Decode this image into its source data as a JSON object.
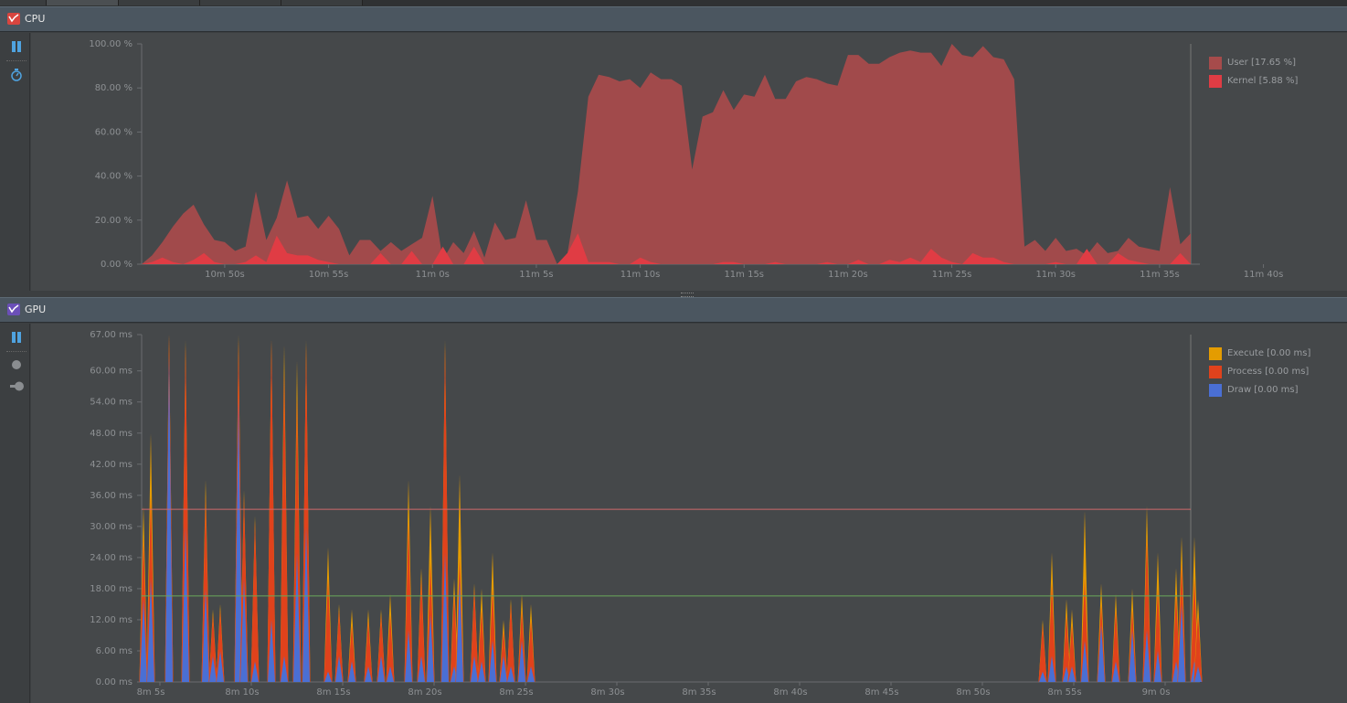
{
  "cpu": {
    "title": "CPU",
    "icon": "cpu-monitor-icon",
    "accent": "#e04545",
    "y_axis": [
      "100.00 %",
      "80.00 %",
      "60.00 %",
      "40.00 %",
      "20.00 %",
      "0.00 %"
    ],
    "x_axis": [
      "10m 50s",
      "10m 55s",
      "11m 0s",
      "11m 5s",
      "11m 10s",
      "11m 15s",
      "11m 20s",
      "11m 25s",
      "11m 30s",
      "11m 35s",
      "11m 40s"
    ],
    "legend": [
      {
        "label": "User [17.65 %]",
        "color": "#a64b4b"
      },
      {
        "label": "Kernel [5.88 %]",
        "color": "#e03c44"
      }
    ]
  },
  "gpu": {
    "title": "GPU",
    "icon": "gpu-monitor-icon",
    "accent": "#7d5cc4",
    "y_axis": [
      "67.00 ms",
      "60.00 ms",
      "54.00 ms",
      "48.00 ms",
      "42.00 ms",
      "36.00 ms",
      "30.00 ms",
      "24.00 ms",
      "18.00 ms",
      "12.00 ms",
      "6.00 ms",
      "0.00 ms"
    ],
    "x_axis": [
      "8m 5s",
      "8m 10s",
      "8m 15s",
      "8m 20s",
      "8m 25s",
      "8m 30s",
      "8m 35s",
      "8m 40s",
      "8m 45s",
      "8m 50s",
      "8m 55s",
      "9m 0s"
    ],
    "legend": [
      {
        "label": "Execute [0.00 ms]",
        "color": "#e49c00"
      },
      {
        "label": "Process [0.00 ms]",
        "color": "#e0421c"
      },
      {
        "label": "Draw [0.00 ms]",
        "color": "#4a6fd4"
      }
    ],
    "threshold_lines": [
      {
        "value_ms": 33.3,
        "color": "#d06a6a"
      },
      {
        "value_ms": 16.6,
        "color": "#6aa85a"
      }
    ]
  },
  "chart_data": [
    {
      "type": "area",
      "name": "CPU",
      "ylim": [
        0,
        100
      ],
      "y_unit": "%",
      "x_start_s": 646,
      "x_step_s": 0.5,
      "series": [
        {
          "name": "User",
          "values": [
            0,
            4,
            10,
            17,
            23,
            27,
            18,
            11,
            10,
            6,
            8,
            33,
            11,
            21,
            38,
            21,
            22,
            16,
            22,
            16,
            4,
            11,
            11,
            6,
            10,
            6,
            9,
            12,
            31,
            2,
            10,
            5,
            15,
            3,
            19,
            11,
            12,
            29,
            11,
            11,
            0,
            5,
            33,
            76,
            86,
            85,
            83,
            84,
            80,
            87,
            84,
            84,
            81,
            43,
            67,
            69,
            79,
            70,
            77,
            76,
            86,
            75,
            75,
            83,
            85,
            84,
            82,
            81,
            95,
            95,
            91,
            91,
            94,
            96,
            97,
            96,
            96,
            90,
            100,
            95,
            94,
            99,
            94,
            93,
            84,
            8,
            11,
            6,
            12,
            6,
            7,
            4,
            10,
            5,
            6,
            12,
            8,
            7,
            6,
            35,
            9,
            14
          ]
        },
        {
          "name": "Kernel",
          "values": [
            0,
            1,
            3,
            1,
            0,
            2,
            5,
            1,
            0,
            0,
            1,
            4,
            1,
            13,
            5,
            4,
            4,
            2,
            1,
            0,
            0,
            0,
            0,
            5,
            0,
            0,
            6,
            0,
            0,
            8,
            0,
            0,
            8,
            0,
            0,
            0,
            0,
            0,
            0,
            0,
            0,
            5,
            14,
            1,
            1,
            1,
            0,
            0,
            3,
            1,
            0,
            0,
            0,
            0,
            0,
            0,
            1,
            1,
            0,
            0,
            0,
            1,
            0,
            0,
            0,
            0,
            1,
            0,
            0,
            2,
            0,
            0,
            2,
            1,
            3,
            1,
            7,
            3,
            1,
            0,
            5,
            3,
            3,
            1,
            0,
            0,
            0,
            0,
            1,
            0,
            0,
            7,
            0,
            0,
            5,
            2,
            1,
            0,
            0,
            0,
            5,
            0,
            0
          ]
        }
      ]
    },
    {
      "type": "area",
      "name": "GPU",
      "ylim": [
        0,
        67
      ],
      "y_unit": "ms",
      "x_start_s": 484,
      "series": [
        {
          "name": "Execute",
          "values": []
        },
        {
          "name": "Process",
          "values": []
        },
        {
          "name": "Draw",
          "values": []
        }
      ],
      "spikes": [
        {
          "t": 484.1,
          "draw": 16,
          "process": 12,
          "execute": 6
        },
        {
          "t": 484.5,
          "draw": 20,
          "process": 16,
          "execute": 12
        },
        {
          "t": 485.5,
          "draw": 63,
          "process": 4,
          "execute": 0
        },
        {
          "t": 486.4,
          "draw": 30,
          "process": 35,
          "execute": 1
        },
        {
          "t": 487.5,
          "draw": 18,
          "process": 18,
          "execute": 3
        },
        {
          "t": 487.9,
          "draw": 5,
          "process": 8,
          "execute": 1
        },
        {
          "t": 488.3,
          "draw": 6,
          "process": 8,
          "execute": 1
        },
        {
          "t": 489.3,
          "draw": 55,
          "process": 11,
          "execute": 1
        },
        {
          "t": 489.6,
          "draw": 20,
          "process": 16,
          "execute": 1
        },
        {
          "t": 490.2,
          "draw": 4,
          "process": 27,
          "execute": 1
        },
        {
          "t": 491.1,
          "draw": 12,
          "process": 54,
          "execute": 0
        },
        {
          "t": 491.8,
          "draw": 5,
          "process": 55,
          "execute": 5
        },
        {
          "t": 492.5,
          "draw": 25,
          "process": 30,
          "execute": 7
        },
        {
          "t": 493.0,
          "draw": 30,
          "process": 35,
          "execute": 1
        },
        {
          "t": 494.2,
          "draw": 2,
          "process": 18,
          "execute": 6
        },
        {
          "t": 494.8,
          "draw": 5,
          "process": 9,
          "execute": 1
        },
        {
          "t": 495.5,
          "draw": 4,
          "process": 7,
          "execute": 3
        },
        {
          "t": 496.4,
          "draw": 3,
          "process": 9,
          "execute": 2
        },
        {
          "t": 497.1,
          "draw": 5,
          "process": 8,
          "execute": 1
        },
        {
          "t": 497.6,
          "draw": 3,
          "process": 10,
          "execute": 4
        },
        {
          "t": 498.6,
          "draw": 10,
          "process": 21,
          "execute": 8
        },
        {
          "t": 499.3,
          "draw": 5,
          "process": 15,
          "execute": 2
        },
        {
          "t": 499.8,
          "draw": 13,
          "process": 10,
          "execute": 11
        },
        {
          "t": 500.6,
          "draw": 25,
          "process": 40,
          "execute": 1
        },
        {
          "t": 501.1,
          "draw": 3,
          "process": 14,
          "execute": 3
        },
        {
          "t": 501.4,
          "draw": 20,
          "process": 4,
          "execute": 16
        },
        {
          "t": 502.2,
          "draw": 5,
          "process": 13,
          "execute": 1
        },
        {
          "t": 502.6,
          "draw": 4,
          "process": 10,
          "execute": 4
        },
        {
          "t": 503.2,
          "draw": 8,
          "process": 10,
          "execute": 7
        },
        {
          "t": 503.8,
          "draw": 5,
          "process": 5,
          "execute": 2
        },
        {
          "t": 504.2,
          "draw": 3,
          "process": 12,
          "execute": 1
        },
        {
          "t": 504.8,
          "draw": 8,
          "process": 6,
          "execute": 3
        },
        {
          "t": 505.3,
          "draw": 3,
          "process": 9,
          "execute": 3
        },
        {
          "t": 533.3,
          "draw": 2,
          "process": 9,
          "execute": 1
        },
        {
          "t": 533.8,
          "draw": 5,
          "process": 14,
          "execute": 6
        },
        {
          "t": 534.6,
          "draw": 3,
          "process": 10,
          "execute": 3
        },
        {
          "t": 534.9,
          "draw": 3,
          "process": 8,
          "execute": 3
        },
        {
          "t": 535.6,
          "draw": 8,
          "process": 12,
          "execute": 13
        },
        {
          "t": 536.5,
          "draw": 11,
          "process": 4,
          "execute": 4
        },
        {
          "t": 537.3,
          "draw": 4,
          "process": 10,
          "execute": 3
        },
        {
          "t": 538.2,
          "draw": 10,
          "process": 4,
          "execute": 4
        },
        {
          "t": 539.0,
          "draw": 10,
          "process": 18,
          "execute": 6
        },
        {
          "t": 539.6,
          "draw": 6,
          "process": 12,
          "execute": 7
        },
        {
          "t": 540.6,
          "draw": 4,
          "process": 13,
          "execute": 5
        },
        {
          "t": 540.9,
          "draw": 15,
          "process": 8,
          "execute": 5
        },
        {
          "t": 541.6,
          "draw": 4,
          "process": 16,
          "execute": 8
        },
        {
          "t": 541.8,
          "draw": 3,
          "process": 10,
          "execute": 3
        }
      ]
    }
  ]
}
